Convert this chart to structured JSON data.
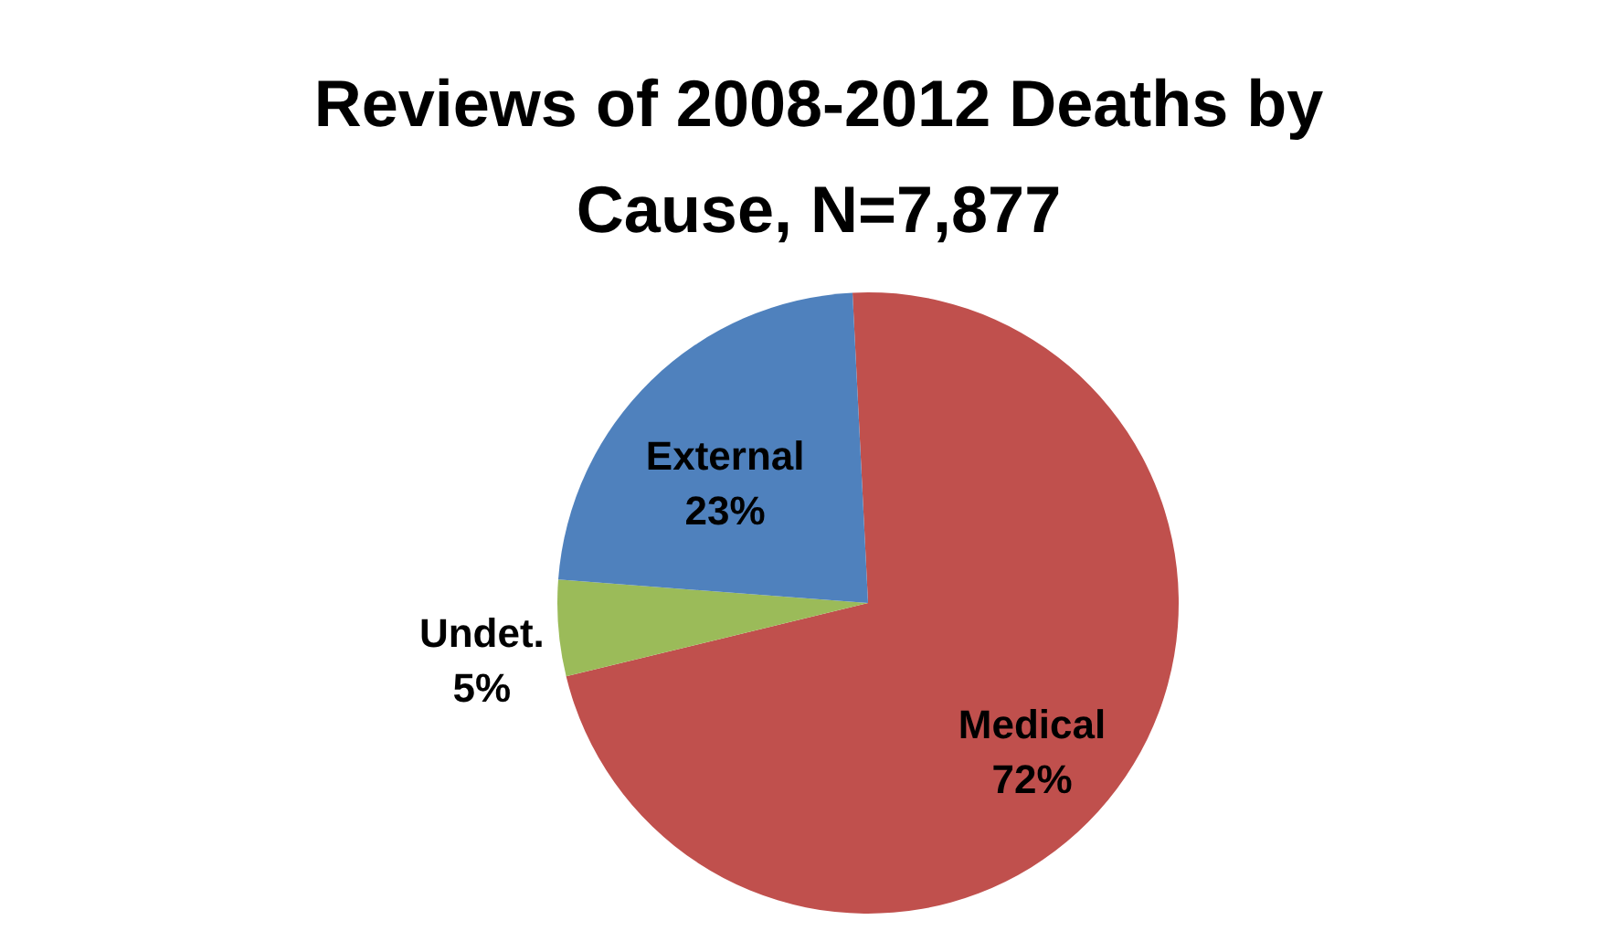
{
  "chart_data": {
    "type": "pie",
    "title": "Reviews of 2008-2012 Deaths by Cause, N=7,877",
    "categories": [
      "Medical",
      "Undet.",
      "External"
    ],
    "values": [
      72,
      5,
      23
    ],
    "colors": [
      "#c0504d",
      "#9bbb59",
      "#4f81bd"
    ],
    "value_labels": [
      "72%",
      "5%",
      "23%"
    ]
  }
}
